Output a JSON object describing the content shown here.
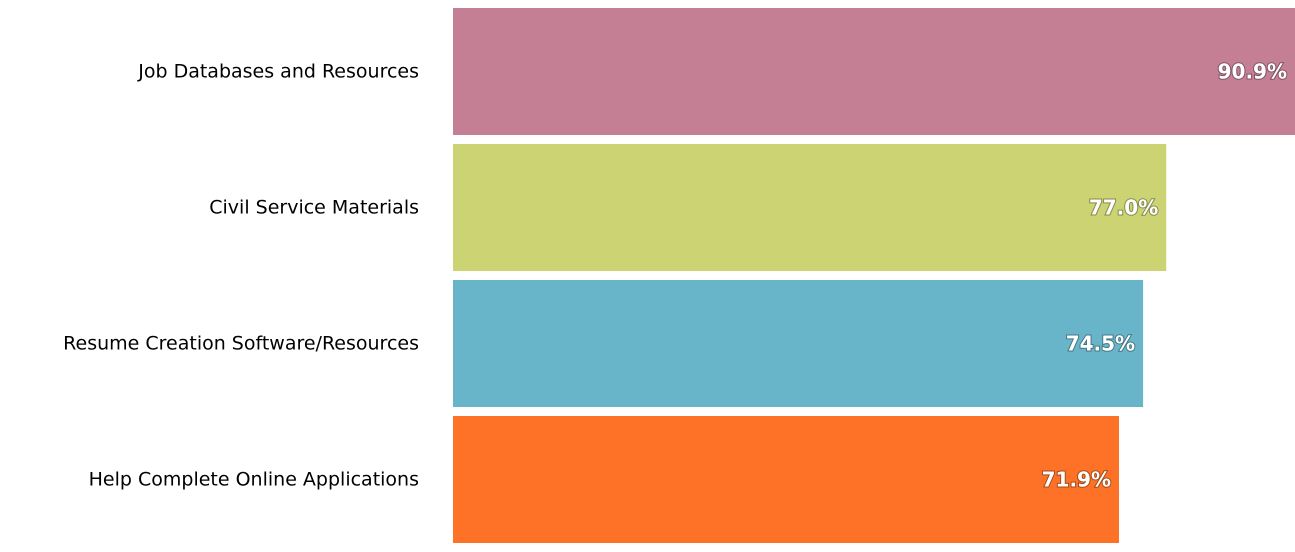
{
  "chart_data": {
    "type": "bar",
    "orientation": "horizontal",
    "title": "",
    "xlabel": "",
    "ylabel": "",
    "xlim": [
      0,
      90.9
    ],
    "grid": false,
    "categories": [
      "Job Databases and Resources",
      "Civil Service Materials",
      "Resume Creation Software/Resources",
      "Help Complete Online Applications"
    ],
    "values": [
      90.9,
      77.0,
      74.5,
      71.9
    ],
    "value_labels": [
      "90.9%",
      "77.0%",
      "74.5%",
      "71.9%"
    ],
    "colors": [
      "#C47F95",
      "#CCD372",
      "#68B5CA",
      "#FD7226"
    ]
  }
}
